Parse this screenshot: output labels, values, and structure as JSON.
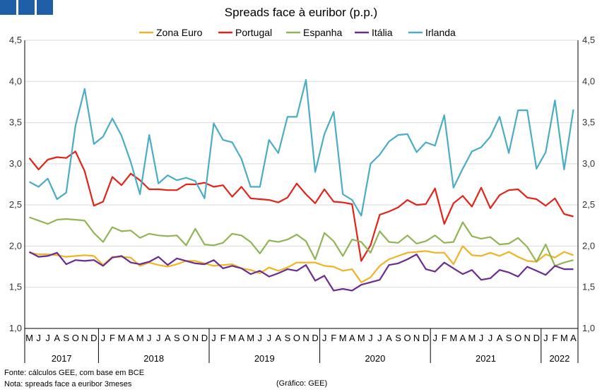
{
  "chart_data": {
    "type": "line",
    "title": "Spreads face à euribor (p.p.)",
    "ylim": [
      1.0,
      4.5
    ],
    "yticks": [
      "1,0",
      "1,5",
      "2,0",
      "2,5",
      "3,0",
      "3,5",
      "4,0",
      "4,5"
    ],
    "yticks_right": [
      "1,0",
      "1,5",
      "2,0",
      "2,5",
      "3,0",
      "3,5",
      "4,0",
      "4,5"
    ],
    "month_labels": [
      "M",
      "J",
      "J",
      "A",
      "S",
      "O",
      "N",
      "D",
      "J",
      "F",
      "M",
      "A",
      "M",
      "J",
      "J",
      "A",
      "S",
      "O",
      "N",
      "D",
      "J",
      "F",
      "M",
      "A",
      "M",
      "J",
      "J",
      "A",
      "S",
      "O",
      "N",
      "D",
      "J",
      "F",
      "M",
      "A",
      "M",
      "J",
      "J",
      "A",
      "S",
      "O",
      "N",
      "D",
      "J",
      "F",
      "M",
      "A",
      "M",
      "J",
      "J",
      "A",
      "S",
      "O",
      "N",
      "D",
      "J",
      "F",
      "M",
      "A"
    ],
    "years": [
      {
        "label": "2017",
        "start": 0,
        "end": 8
      },
      {
        "label": "2018",
        "start": 8,
        "end": 20
      },
      {
        "label": "2019",
        "start": 20,
        "end": 32
      },
      {
        "label": "2020",
        "start": 32,
        "end": 44
      },
      {
        "label": "2021",
        "start": 44,
        "end": 56
      },
      {
        "label": "2022",
        "start": 56,
        "end": 60
      }
    ],
    "grid": "horizontal",
    "legend": "top",
    "series": [
      {
        "name": "Zona Euro",
        "color": "#f0b323",
        "values": [
          1.92,
          1.9,
          1.9,
          1.89,
          1.87,
          1.88,
          1.89,
          1.88,
          1.77,
          1.87,
          1.87,
          1.86,
          1.76,
          1.8,
          1.77,
          1.75,
          1.78,
          1.82,
          1.82,
          1.79,
          1.76,
          1.77,
          1.78,
          1.73,
          1.71,
          1.67,
          1.74,
          1.7,
          1.74,
          1.8,
          1.8,
          1.8,
          1.76,
          1.75,
          1.7,
          1.72,
          1.56,
          1.62,
          1.76,
          1.84,
          1.88,
          1.92,
          1.93,
          1.94,
          1.92,
          1.92,
          1.78,
          2.0,
          1.89,
          1.88,
          1.92,
          1.88,
          1.93,
          1.87,
          1.82,
          1.81,
          1.9,
          1.86,
          1.93,
          1.89
        ]
      },
      {
        "name": "Portugal",
        "color": "#e2231a",
        "values": [
          3.07,
          2.93,
          3.05,
          3.08,
          3.07,
          3.15,
          2.91,
          2.49,
          2.54,
          2.84,
          2.74,
          2.88,
          2.8,
          2.69,
          2.69,
          2.68,
          2.68,
          2.75,
          2.75,
          2.77,
          2.72,
          2.74,
          2.6,
          2.72,
          2.58,
          2.57,
          2.56,
          2.53,
          2.59,
          2.76,
          2.63,
          2.52,
          2.69,
          2.54,
          2.53,
          2.51,
          1.82,
          2.01,
          2.38,
          2.42,
          2.47,
          2.56,
          2.5,
          2.51,
          2.7,
          2.27,
          2.52,
          2.61,
          2.48,
          2.71,
          2.46,
          2.62,
          2.68,
          2.69,
          2.59,
          2.57,
          2.49,
          2.58,
          2.39,
          2.36
        ]
      },
      {
        "name": "Espanha",
        "color": "#92b455",
        "values": [
          2.35,
          2.31,
          2.27,
          2.32,
          2.33,
          2.32,
          2.31,
          2.16,
          2.05,
          2.23,
          2.18,
          2.19,
          2.1,
          2.15,
          2.13,
          2.12,
          2.13,
          2.01,
          2.21,
          2.02,
          2.01,
          2.04,
          2.15,
          2.13,
          2.05,
          1.91,
          2.07,
          2.05,
          2.08,
          2.14,
          2.06,
          1.84,
          2.16,
          2.06,
          1.88,
          2.08,
          2.05,
          1.92,
          2.18,
          2.05,
          2.04,
          2.13,
          2.03,
          2.06,
          2.13,
          2.04,
          2.05,
          2.29,
          2.12,
          2.09,
          2.11,
          2.02,
          2.03,
          2.1,
          1.99,
          1.81,
          2.02,
          1.76,
          1.8,
          1.83
        ]
      },
      {
        "name": "Itália",
        "color": "#6a2c91",
        "values": [
          1.93,
          1.87,
          1.88,
          1.92,
          1.78,
          1.83,
          1.82,
          1.83,
          1.76,
          1.86,
          1.88,
          1.8,
          1.78,
          1.81,
          1.87,
          1.77,
          1.85,
          1.82,
          1.79,
          1.78,
          1.83,
          1.73,
          1.76,
          1.73,
          1.66,
          1.7,
          1.63,
          1.67,
          1.72,
          1.7,
          1.77,
          1.58,
          1.64,
          1.46,
          1.48,
          1.46,
          1.53,
          1.56,
          1.59,
          1.77,
          1.79,
          1.84,
          1.9,
          1.72,
          1.69,
          1.8,
          1.73,
          1.66,
          1.71,
          1.59,
          1.61,
          1.71,
          1.68,
          1.63,
          1.75,
          1.7,
          1.65,
          1.76,
          1.72,
          1.72
        ]
      },
      {
        "name": "Irlanda",
        "color": "#4bacc6",
        "values": [
          2.78,
          2.72,
          2.82,
          2.57,
          2.65,
          3.46,
          3.91,
          3.24,
          3.33,
          3.55,
          3.34,
          3.02,
          2.63,
          3.35,
          2.76,
          2.86,
          2.8,
          2.83,
          2.79,
          2.58,
          3.49,
          3.29,
          3.26,
          3.06,
          2.72,
          2.72,
          3.29,
          3.13,
          3.57,
          3.57,
          4.02,
          2.9,
          3.36,
          3.63,
          2.63,
          2.56,
          2.37,
          3.0,
          3.11,
          3.27,
          3.35,
          3.36,
          3.14,
          3.26,
          3.22,
          3.59,
          2.71,
          2.94,
          3.15,
          3.2,
          3.33,
          3.57,
          3.13,
          3.65,
          3.65,
          2.94,
          3.14,
          3.77,
          2.93,
          3.66
        ]
      }
    ]
  },
  "footer": {
    "source": "Fonte: cálculos GEE, com base em BCE",
    "note": "Nota: spreads face a euribor 3meses",
    "credit": "(Gráfico: GEE)"
  }
}
